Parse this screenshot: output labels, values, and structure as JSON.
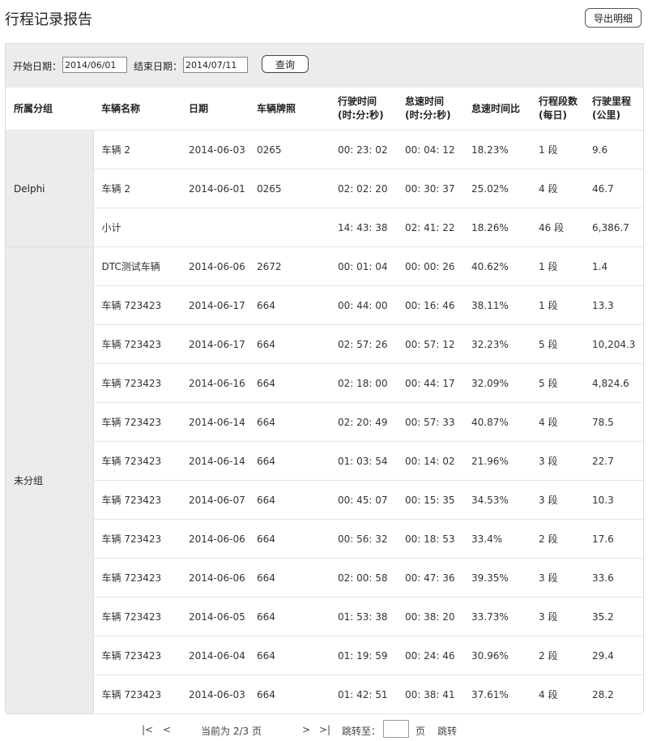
{
  "header": {
    "title": "行程记录报告",
    "export_label": "导出明细"
  },
  "filter": {
    "start_label": "开始日期：",
    "start_value": "2014/06/01",
    "end_label": "结束日期：",
    "end_value": "2014/07/11",
    "query_label": "查询"
  },
  "table": {
    "columns": {
      "group": "所属分组",
      "vehicle": "车辆名称",
      "date": "日期",
      "plate": "车辆牌照",
      "drive_1": "行驶时间",
      "drive_2": "(时:分:秒)",
      "idle_1": "怠速时间",
      "idle_2": "(时:分:秒)",
      "idle_ratio": "怠速时间比",
      "trips_1": "行程段数",
      "trips_2": "(每日)",
      "dist_1": "行驶里程",
      "dist_2": "(公里)"
    },
    "groups": [
      {
        "name": "Delphi",
        "rows": [
          {
            "vehicle": "车辆 2",
            "date": "2014-06-03",
            "plate": "0265",
            "drive": "00: 23: 02",
            "idle": "00: 04: 12",
            "ratio": "18.23%",
            "trips": "1 段",
            "dist": "9.6"
          },
          {
            "vehicle": "车辆 2",
            "date": "2014-06-01",
            "plate": "0265",
            "drive": "02: 02: 20",
            "idle": "00: 30: 37",
            "ratio": "25.02%",
            "trips": "4 段",
            "dist": "46.7"
          },
          {
            "vehicle": "小计",
            "date": "",
            "plate": "",
            "drive": "14: 43: 38",
            "idle": "02: 41: 22",
            "ratio": "18.26%",
            "trips": "46 段",
            "dist": "6,386.7"
          }
        ]
      },
      {
        "name": "未分组",
        "rows": [
          {
            "vehicle": "DTC测试车辆",
            "date": "2014-06-06",
            "plate": "2672",
            "drive": "00: 01: 04",
            "idle": "00: 00: 26",
            "ratio": "40.62%",
            "trips": "1 段",
            "dist": "1.4"
          },
          {
            "vehicle": "车辆 723423",
            "date": "2014-06-17",
            "plate": "664",
            "drive": "00: 44: 00",
            "idle": "00: 16: 46",
            "ratio": "38.11%",
            "trips": "1 段",
            "dist": "13.3"
          },
          {
            "vehicle": "车辆 723423",
            "date": "2014-06-17",
            "plate": "664",
            "drive": "02: 57: 26",
            "idle": "00: 57: 12",
            "ratio": "32.23%",
            "trips": "5 段",
            "dist": "10,204.3"
          },
          {
            "vehicle": "车辆 723423",
            "date": "2014-06-16",
            "plate": "664",
            "drive": "02: 18: 00",
            "idle": "00: 44: 17",
            "ratio": "32.09%",
            "trips": "5 段",
            "dist": "4,824.6"
          },
          {
            "vehicle": "车辆 723423",
            "date": "2014-06-14",
            "plate": "664",
            "drive": "02: 20: 49",
            "idle": "00: 57: 33",
            "ratio": "40.87%",
            "trips": "4 段",
            "dist": "78.5"
          },
          {
            "vehicle": "车辆 723423",
            "date": "2014-06-14",
            "plate": "664",
            "drive": "01: 03: 54",
            "idle": "00: 14: 02",
            "ratio": "21.96%",
            "trips": "3 段",
            "dist": "22.7"
          },
          {
            "vehicle": "车辆 723423",
            "date": "2014-06-07",
            "plate": "664",
            "drive": "00: 45: 07",
            "idle": "00: 15: 35",
            "ratio": "34.53%",
            "trips": "3 段",
            "dist": "10.3"
          },
          {
            "vehicle": "车辆 723423",
            "date": "2014-06-06",
            "plate": "664",
            "drive": "00: 56: 32",
            "idle": "00: 18: 53",
            "ratio": "33.4%",
            "trips": "2 段",
            "dist": "17.6"
          },
          {
            "vehicle": "车辆 723423",
            "date": "2014-06-06",
            "plate": "664",
            "drive": "02: 00: 58",
            "idle": "00: 47: 36",
            "ratio": "39.35%",
            "trips": "3 段",
            "dist": "33.6"
          },
          {
            "vehicle": "车辆 723423",
            "date": "2014-06-05",
            "plate": "664",
            "drive": "01: 53: 38",
            "idle": "00: 38: 20",
            "ratio": "33.73%",
            "trips": "3 段",
            "dist": "35.2"
          },
          {
            "vehicle": "车辆 723423",
            "date": "2014-06-04",
            "plate": "664",
            "drive": "01: 19: 59",
            "idle": "00: 24: 46",
            "ratio": "30.96%",
            "trips": "2 段",
            "dist": "29.4"
          },
          {
            "vehicle": "车辆 723423",
            "date": "2014-06-03",
            "plate": "664",
            "drive": "01: 42: 51",
            "idle": "00: 38: 41",
            "ratio": "37.61%",
            "trips": "4 段",
            "dist": "28.2"
          }
        ]
      }
    ]
  },
  "pager": {
    "first": "|<",
    "prev": "<",
    "page_label": "当前为 2/3 页",
    "next": ">",
    "last": ">|",
    "jump_label": "跳转至：",
    "page_unit": "页",
    "go_label": "跳转"
  }
}
